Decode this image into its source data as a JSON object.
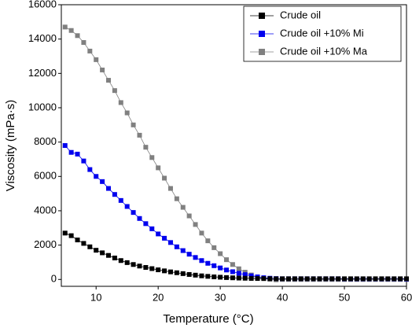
{
  "chart_data": {
    "type": "scatter",
    "x_label": "Temperature (°C)",
    "y_label": "Viscosity (mPa·s)",
    "xlim": [
      4.4,
      60
    ],
    "ylim": [
      -400,
      16000
    ],
    "xticks": [
      10,
      20,
      30,
      40,
      50,
      60
    ],
    "yticks": [
      0,
      2000,
      4000,
      6000,
      8000,
      10000,
      12000,
      14000,
      16000
    ],
    "grid": false,
    "legend": "upper right",
    "x": [
      5,
      6,
      7,
      8,
      9,
      10,
      11,
      12,
      13,
      14,
      15,
      16,
      17,
      18,
      19,
      20,
      21,
      22,
      23,
      24,
      25,
      26,
      27,
      28,
      29,
      30,
      31,
      32,
      33,
      34,
      35,
      36,
      37,
      38,
      39,
      40,
      41,
      42,
      43,
      44,
      45,
      46,
      47,
      48,
      49,
      50,
      51,
      52,
      53,
      54,
      55,
      56,
      57,
      58,
      59,
      60
    ],
    "series": [
      {
        "name": "Crude oil",
        "color": "#000000",
        "values": [
          2700,
          2550,
          2300,
          2100,
          1900,
          1700,
          1550,
          1400,
          1250,
          1100,
          980,
          870,
          780,
          700,
          630,
          560,
          500,
          440,
          390,
          340,
          290,
          250,
          210,
          180,
          150,
          130,
          110,
          95,
          80,
          70,
          60,
          55,
          50,
          45,
          40,
          40,
          40,
          40,
          40,
          40,
          40,
          40,
          40,
          40,
          40,
          40,
          40,
          40,
          40,
          40,
          40,
          40,
          40,
          40,
          40,
          40
        ]
      },
      {
        "name": "Crude oil +10% Mi",
        "color": "#0000ee",
        "values": [
          7800,
          7400,
          7300,
          6900,
          6400,
          6000,
          5700,
          5300,
          4950,
          4600,
          4250,
          3900,
          3550,
          3250,
          2950,
          2650,
          2400,
          2150,
          1900,
          1680,
          1470,
          1280,
          1100,
          940,
          800,
          670,
          550,
          450,
          360,
          280,
          210,
          150,
          100,
          70,
          50,
          40,
          40,
          40,
          40,
          40,
          40,
          40,
          40,
          40,
          40,
          30,
          30,
          30,
          30,
          30,
          30,
          30,
          30,
          30,
          30,
          20
        ]
      },
      {
        "name": "Crude oil +10% Ma",
        "color": "#808080",
        "values": [
          14700,
          14500,
          14200,
          13800,
          13300,
          12800,
          12200,
          11600,
          11000,
          10300,
          9700,
          9000,
          8400,
          7700,
          7100,
          6500,
          5900,
          5300,
          4700,
          4200,
          3700,
          3200,
          2700,
          2250,
          1850,
          1500,
          1150,
          870,
          620,
          420,
          260,
          140,
          60,
          10,
          -20,
          0,
          0,
          0,
          0,
          0,
          0,
          0,
          0,
          0,
          0,
          0,
          0,
          0,
          0,
          0,
          0,
          0,
          0,
          0,
          0,
          0
        ]
      }
    ]
  }
}
